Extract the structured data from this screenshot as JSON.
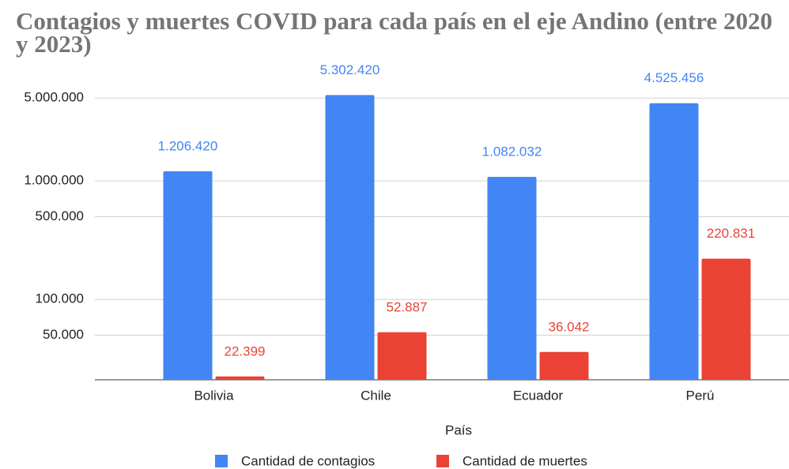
{
  "chart_data": {
    "type": "bar",
    "title": "Contagios y muertes COVID para cada país en el eje Andino (entre 2020 y 2023)",
    "xlabel": "País",
    "categories": [
      "Bolivia",
      "Chile",
      "Ecuador",
      "Perú"
    ],
    "series": [
      {
        "name": "Cantidad de contagios",
        "color": "#4285f4",
        "values": [
          1206420,
          5302420,
          1082032,
          4525456
        ],
        "value_labels": [
          "1.206.420",
          "5.302.420",
          "1.082.032",
          "4.525.456"
        ]
      },
      {
        "name": "Cantidad de muertes",
        "color": "#ea4335",
        "values": [
          22399,
          52887,
          36042,
          220831
        ],
        "value_labels": [
          "22.399",
          "52.887",
          "36.042",
          "220.831"
        ]
      }
    ],
    "log_scale": true,
    "ylim": [
      21000,
      10000000
    ],
    "yticks": [
      {
        "value": 50000,
        "label": "50.000"
      },
      {
        "value": 100000,
        "label": "100.000"
      },
      {
        "value": 500000,
        "label": "500.000"
      },
      {
        "value": 1000000,
        "label": "1.000.000"
      },
      {
        "value": 5000000,
        "label": "5.000.000"
      }
    ],
    "grid": true,
    "legend": "bottom"
  }
}
